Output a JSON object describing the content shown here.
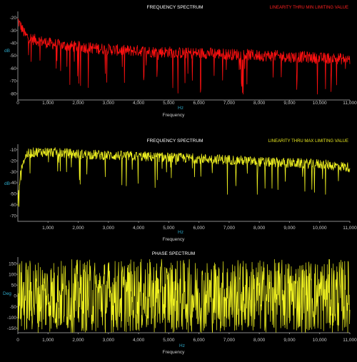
{
  "chart_data": [
    {
      "type": "line",
      "title": "FREQUENCY SPECTRUM",
      "series": [
        {
          "name": "LINEARITY THRU MIN LIMITING VALUE",
          "color": "#ff1010"
        }
      ],
      "xlabel": "Frequency",
      "xunit": "Hz",
      "ylabel": "dB",
      "xlim": [
        0,
        11000
      ],
      "ylim": [
        -85,
        -15
      ],
      "x_ticks": [
        "0",
        "1,000",
        "2,000",
        "3,000",
        "4,000",
        "5,000",
        "6,000",
        "7,000",
        "8,000",
        "9,000",
        "10,000",
        "11,000"
      ],
      "y_ticks": [
        "-20",
        "-30",
        "-40",
        "-50",
        "-60",
        "-70",
        "-80"
      ],
      "y_tick_values": [
        -20,
        -30,
        -40,
        -50,
        -60,
        -70,
        -80
      ],
      "x": [
        0,
        250,
        500,
        1000,
        1500,
        2000,
        2500,
        3000,
        3500,
        4000,
        4500,
        5000,
        5500,
        6000,
        6500,
        7000,
        7500,
        8000,
        8500,
        9000,
        9500,
        10000,
        10500,
        11000
      ],
      "values": [
        -22,
        -34,
        -37,
        -40,
        -42,
        -43,
        -44,
        -45,
        -46,
        -46,
        -47,
        -47,
        -48,
        -48,
        -48,
        -49,
        -49,
        -50,
        -50,
        -51,
        -51,
        -52,
        -52,
        -53
      ]
    },
    {
      "type": "line",
      "title": "FREQUENCY SPECTRUM",
      "series": [
        {
          "name": "LINEARITY THRU MAX LIMITING VALUE",
          "color": "#eef020"
        }
      ],
      "xlabel": "Frequency",
      "xunit": "Hz",
      "ylabel": "dB",
      "xlim": [
        0,
        11000
      ],
      "ylim": [
        -75,
        -5
      ],
      "x_ticks": [
        "1,000",
        "2,000",
        "3,000",
        "4,000",
        "5,000",
        "6,000",
        "7,000",
        "8,000",
        "9,000",
        "10,000",
        "11,000"
      ],
      "x_tick_values": [
        1000,
        2000,
        3000,
        4000,
        5000,
        6000,
        7000,
        8000,
        9000,
        10000,
        11000
      ],
      "y_ticks": [
        "-10",
        "-20",
        "-30",
        "-40",
        "-50",
        "-60",
        "-70"
      ],
      "y_tick_values": [
        -10,
        -20,
        -30,
        -40,
        -50,
        -60,
        -70
      ],
      "x": [
        0,
        50,
        150,
        300,
        600,
        1000,
        1500,
        2000,
        3000,
        4000,
        5000,
        6000,
        7000,
        8000,
        9000,
        10000,
        11000
      ],
      "values": [
        -60,
        -40,
        -22,
        -14,
        -12,
        -12,
        -13,
        -14,
        -15,
        -16,
        -17,
        -18,
        -19,
        -21,
        -22,
        -23,
        -26
      ]
    },
    {
      "type": "line",
      "title": "PHASE SPECTRUM",
      "series": [
        {
          "color": "#eef020"
        }
      ],
      "xlabel": "Frequency",
      "xunit": "Hz",
      "ylabel": "Deg",
      "xlim": [
        0,
        11000
      ],
      "ylim": [
        -170,
        180
      ],
      "x_ticks": [
        "0",
        "1,000",
        "2,000",
        "3,000",
        "4,000",
        "5,000",
        "6,000",
        "7,000",
        "8,000",
        "9,000",
        "10,000",
        "11,000"
      ],
      "y_ticks": [
        "150",
        "100",
        "50",
        "0",
        "-50",
        "-100",
        "-150"
      ],
      "y_tick_values": [
        150,
        100,
        50,
        0,
        -50,
        -100,
        -150
      ],
      "x": [
        0,
        11000
      ],
      "values": [
        0,
        0
      ],
      "range": [
        -170,
        170
      ]
    }
  ]
}
